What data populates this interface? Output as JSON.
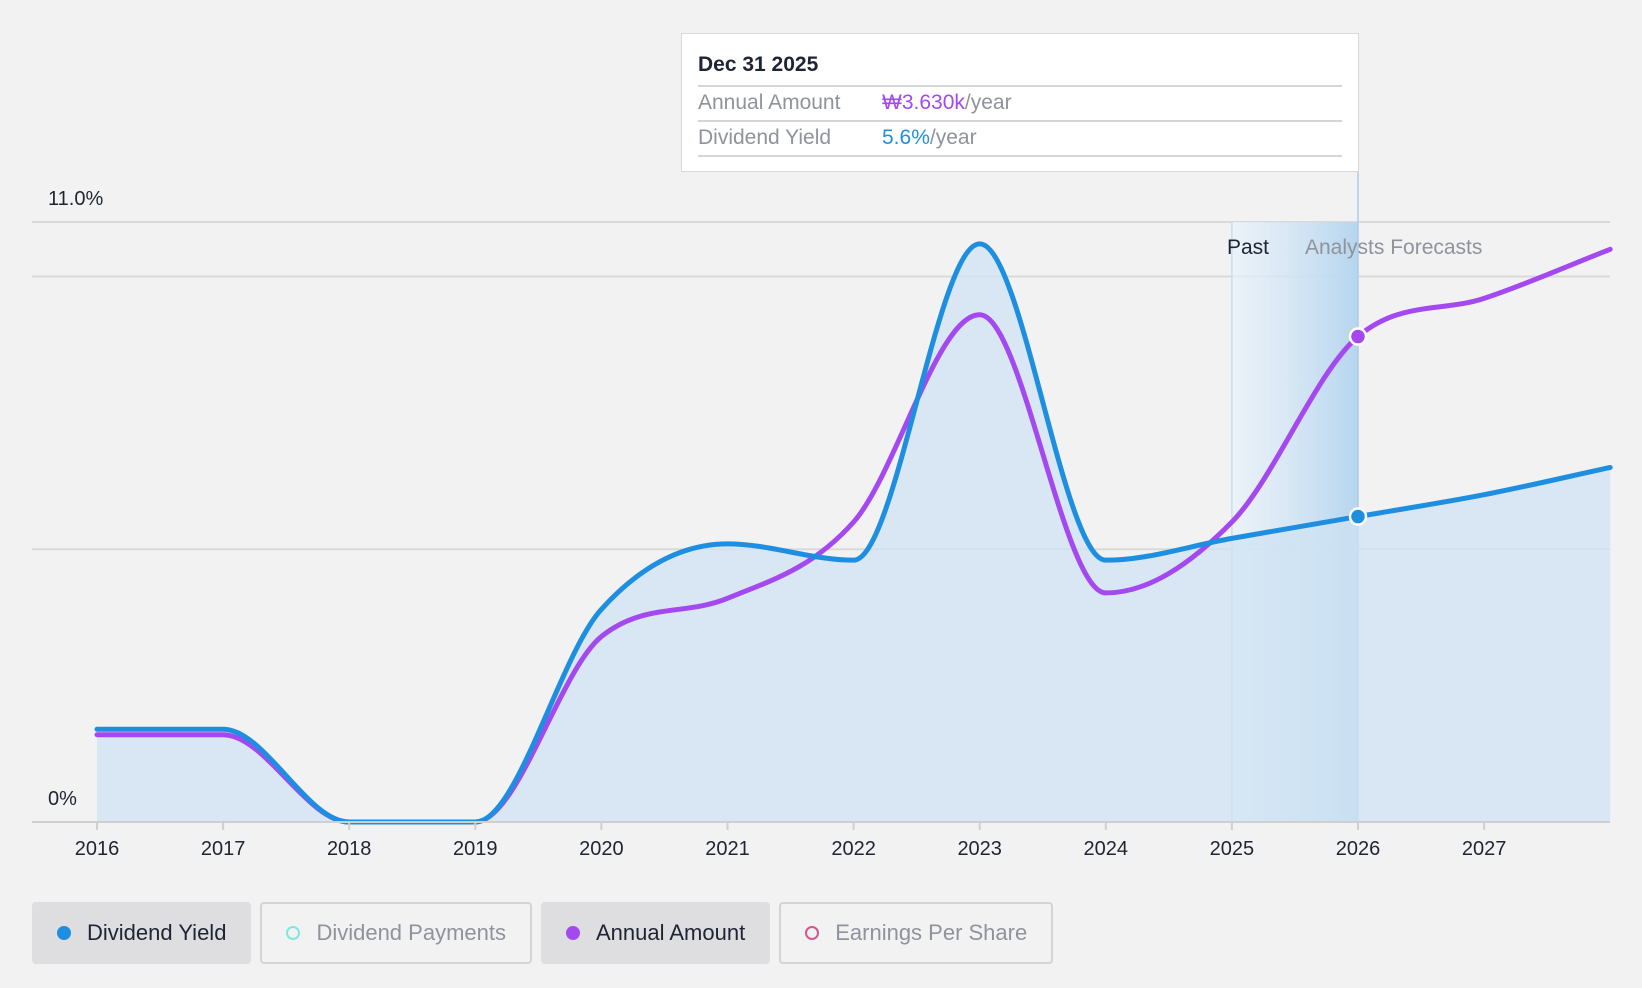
{
  "tooltip": {
    "date": "Dec 31 2025",
    "annual_label": "Annual Amount",
    "annual_value": "₩3.630k",
    "annual_unit": "/year",
    "yield_label": "Dividend Yield",
    "yield_value": "5.6%",
    "yield_unit": "/year"
  },
  "regions": {
    "past_label": "Past",
    "forecast_label": "Analysts Forecasts"
  },
  "legend": [
    {
      "label": "Dividend Yield",
      "color": "#1e8fe0",
      "active": true,
      "filled": true
    },
    {
      "label": "Dividend Payments",
      "color": "#7ee8df",
      "active": false,
      "filled": false
    },
    {
      "label": "Annual Amount",
      "color": "#a448f0",
      "active": true,
      "filled": true
    },
    {
      "label": "Earnings Per Share",
      "color": "#d05a8c",
      "active": false,
      "filled": false
    }
  ],
  "colors": {
    "yield": "#1e8fe0",
    "annual": "#a448f0",
    "grid": "#d9d9d9",
    "area": "#cfe3f3"
  },
  "chart_data": {
    "type": "line",
    "y_axis": {
      "top_label": "11.0%",
      "bottom_label": "0%",
      "ylim": [
        0,
        11.0
      ]
    },
    "x_ticks": [
      "2016",
      "2017",
      "2018",
      "2019",
      "2020",
      "2021",
      "2022",
      "2023",
      "2024",
      "2025",
      "2026",
      "2027"
    ],
    "xlim": [
      2016,
      2028
    ],
    "past_end": 2026,
    "series": [
      {
        "name": "Dividend Yield",
        "points": [
          [
            2016,
            1.7
          ],
          [
            2017,
            1.7
          ],
          [
            2018,
            0.0
          ],
          [
            2019,
            0.0
          ],
          [
            2020,
            3.9
          ],
          [
            2021,
            5.1
          ],
          [
            2022,
            4.8
          ],
          [
            2023,
            10.6
          ],
          [
            2024,
            4.8
          ],
          [
            2025,
            5.2
          ],
          [
            2026,
            5.6
          ],
          [
            2027,
            6.0
          ],
          [
            2028,
            6.5
          ]
        ]
      },
      {
        "name": "Annual Amount",
        "points": [
          [
            2016,
            1.6
          ],
          [
            2017,
            1.6
          ],
          [
            2018,
            0.0
          ],
          [
            2019,
            0.0
          ],
          [
            2020,
            3.4
          ],
          [
            2021,
            4.1
          ],
          [
            2022,
            5.5
          ],
          [
            2023,
            9.3
          ],
          [
            2024,
            4.2
          ],
          [
            2025,
            5.5
          ],
          [
            2026,
            8.9
          ],
          [
            2027,
            9.6
          ],
          [
            2028,
            10.5
          ]
        ]
      }
    ],
    "highlight_x": 2026,
    "highlight_values": {
      "Dividend Yield": 5.6,
      "Annual Amount": 8.9
    }
  }
}
